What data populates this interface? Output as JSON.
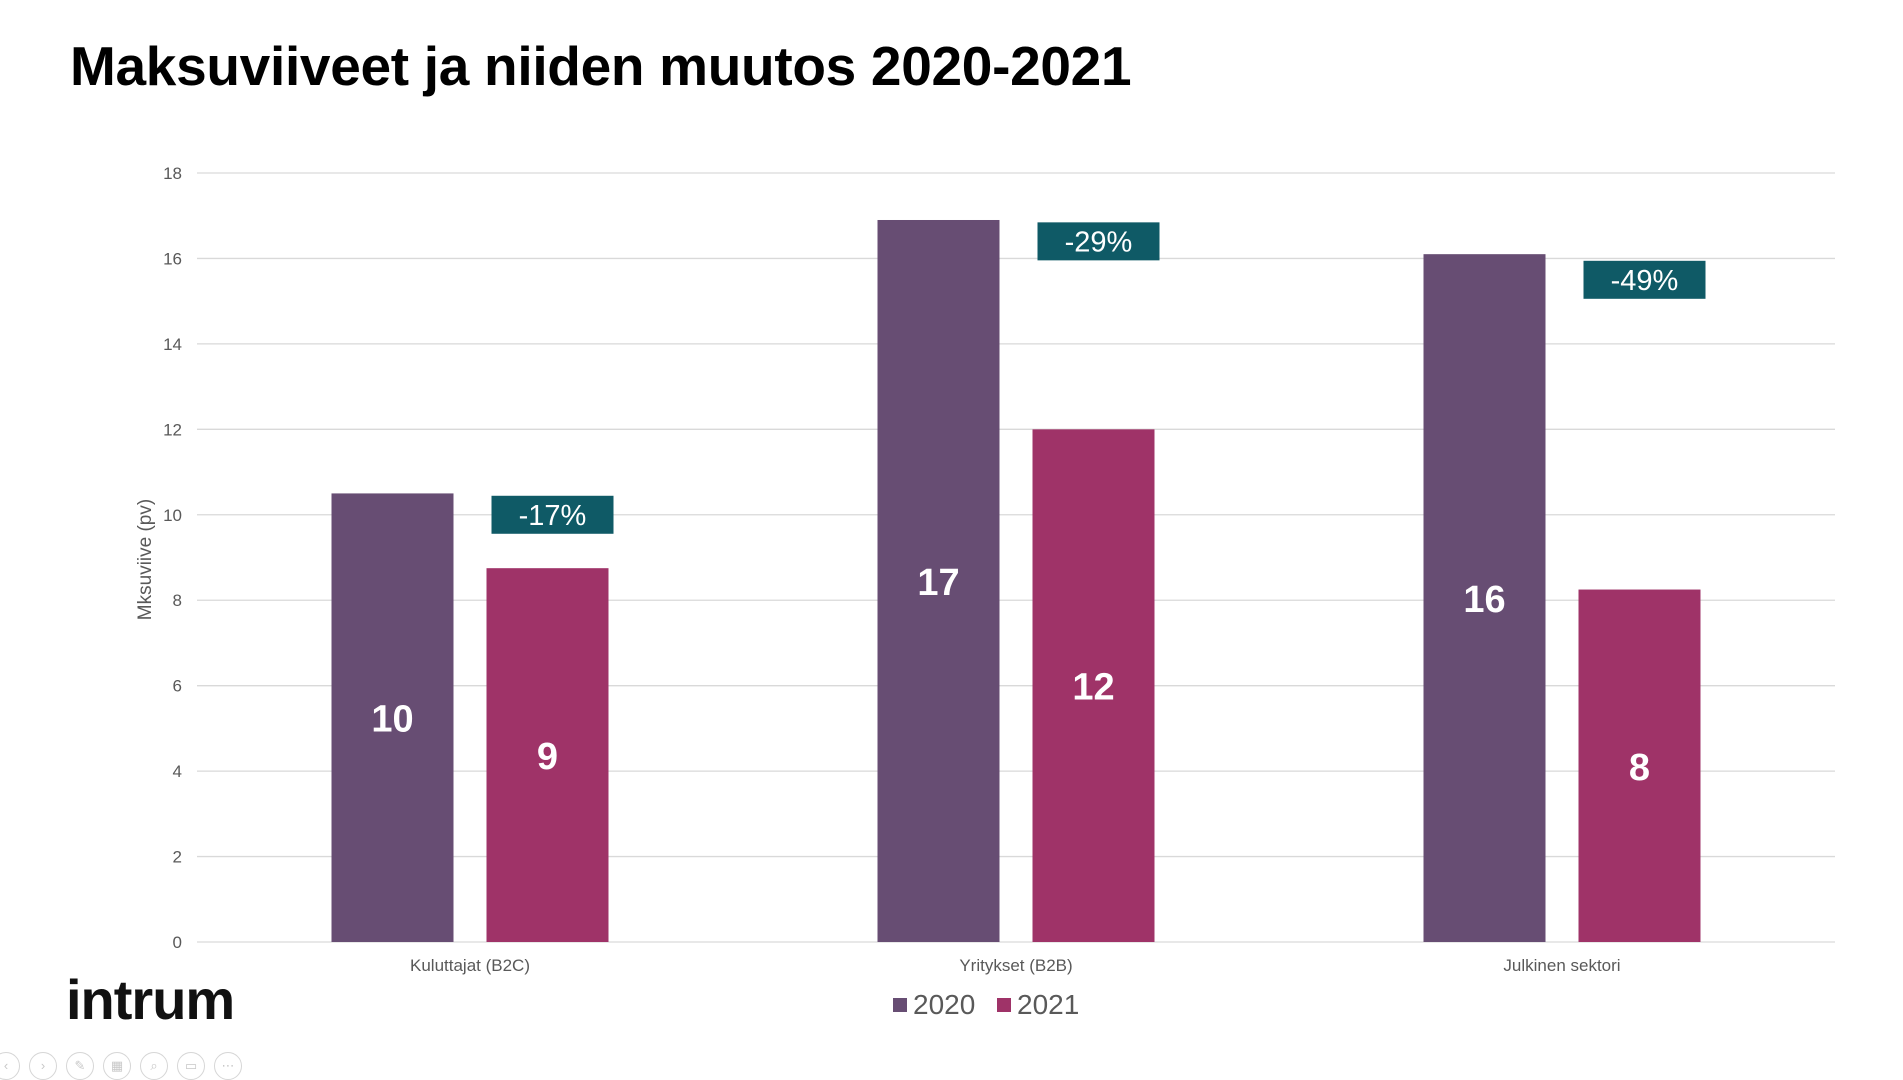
{
  "slide": {
    "title": "Maksuviiveet ja niiden muutos 2020-2021",
    "logo_text": "intrum"
  },
  "controls": [
    {
      "name": "previous-slide-icon",
      "glyph": "‹"
    },
    {
      "name": "next-slide-icon",
      "glyph": "›"
    },
    {
      "name": "pen-icon",
      "glyph": "✎"
    },
    {
      "name": "slides-grid-icon",
      "glyph": "▦"
    },
    {
      "name": "zoom-icon",
      "glyph": "⌕"
    },
    {
      "name": "subtitles-icon",
      "glyph": "▭"
    },
    {
      "name": "more-options-icon",
      "glyph": "⋯"
    }
  ],
  "chart_data": {
    "type": "bar",
    "title": "",
    "xlabel": "",
    "ylabel": "Mksuviive (pv)",
    "ylim": [
      0,
      18
    ],
    "yticks": [
      0,
      2,
      4,
      6,
      8,
      10,
      12,
      14,
      16,
      18
    ],
    "grid": true,
    "legend_position": "bottom",
    "categories": [
      "Kuluttajat (B2C)",
      "Yritykset (B2B)",
      "Julkinen sektori"
    ],
    "series": [
      {
        "name": "2020",
        "color": "#674d73",
        "values": [
          10.5,
          16.9,
          16.1
        ],
        "labels": [
          "10",
          "17",
          "16"
        ]
      },
      {
        "name": "2021",
        "color": "#9f3368",
        "values": [
          8.75,
          12,
          8.25
        ],
        "labels": [
          "9",
          "12",
          "8"
        ]
      }
    ],
    "annotations": [
      {
        "category_index": 0,
        "text": "-17%",
        "y": 10
      },
      {
        "category_index": 1,
        "text": "-29%",
        "y": 16.4
      },
      {
        "category_index": 2,
        "text": "-49%",
        "y": 15.5
      }
    ],
    "annotation_color": "#0f5a66",
    "grid_color": "#d9d9d9",
    "axis_text_color": "#595959"
  }
}
